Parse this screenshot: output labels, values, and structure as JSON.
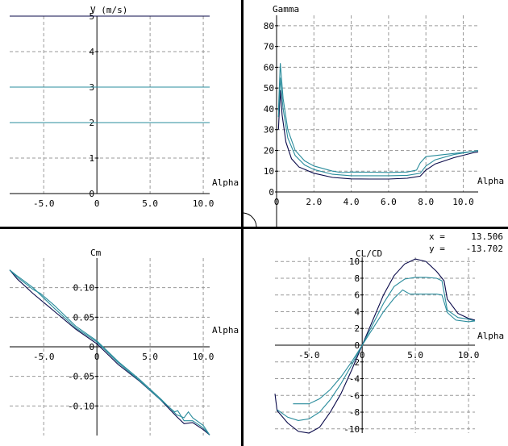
{
  "colors": {
    "background": "#ffffff",
    "grid": "#9a9a9a",
    "axis": "#000000",
    "series_dark": "#0a0a4a",
    "series_teal": "#2a8c9c",
    "separator": "#000000"
  },
  "readout": {
    "x_label": "x  =",
    "x_value": "13.506",
    "y_label": "y  =",
    "y_value": "-13.702"
  },
  "chart_data": [
    {
      "id": "velocity",
      "type": "line",
      "xlabel": "Alpha",
      "ylabel": "V (m/s)",
      "xlim": [
        -8.2,
        10.6
      ],
      "ylim": [
        0,
        5
      ],
      "xticks": [
        -5,
        0,
        5,
        10
      ],
      "xtick_labels": [
        "-5.0",
        "0",
        "5.0",
        "10.0"
      ],
      "yticks": [
        0,
        1,
        2,
        3,
        4,
        5
      ],
      "ytick_labels": [
        "0",
        "1",
        "2",
        "3",
        "4",
        "5"
      ],
      "grid": true,
      "series": [
        {
          "color": "#0a0a4a",
          "points": [
            [
              -8.2,
              5
            ],
            [
              10.6,
              5
            ]
          ]
        },
        {
          "color": "#2a8c9c",
          "points": [
            [
              -8.2,
              3
            ],
            [
              10.6,
              3
            ]
          ]
        },
        {
          "color": "#2a8c9c",
          "points": [
            [
              -8.2,
              2
            ],
            [
              10.6,
              2
            ]
          ]
        }
      ]
    },
    {
      "id": "gamma",
      "type": "line",
      "xlabel": "Alpha",
      "ylabel": "Gamma",
      "xlim": [
        0,
        10.8
      ],
      "ylim": [
        0,
        85
      ],
      "xticks": [
        0,
        2,
        4,
        6,
        8,
        10
      ],
      "xtick_labels": [
        "0",
        "2.0",
        "4.0",
        "6.0",
        "8.0",
        "10.0"
      ],
      "yticks": [
        0,
        10,
        20,
        30,
        40,
        50,
        60,
        70,
        80
      ],
      "ytick_labels": [
        "0",
        "10",
        "20",
        "30",
        "40",
        "50",
        "60",
        "70",
        "80"
      ],
      "grid": true,
      "series": [
        {
          "color": "#0a0a4a",
          "points": [
            [
              0.1,
              30
            ],
            [
              0.2,
              49
            ],
            [
              0.3,
              37
            ],
            [
              0.5,
              24
            ],
            [
              0.8,
              16
            ],
            [
              1.2,
              12
            ],
            [
              2,
              9
            ],
            [
              3,
              7
            ],
            [
              4,
              6.3
            ],
            [
              5,
              6.2
            ],
            [
              6,
              6.2
            ],
            [
              7,
              6.6
            ],
            [
              7.7,
              7.6
            ],
            [
              8,
              10.5
            ],
            [
              8.5,
              13.5
            ],
            [
              9.5,
              16.5
            ],
            [
              10.5,
              18.8
            ],
            [
              10.8,
              19.3
            ]
          ]
        },
        {
          "color": "#2a8c9c",
          "points": [
            [
              0.1,
              39
            ],
            [
              0.2,
              62
            ],
            [
              0.35,
              45
            ],
            [
              0.6,
              30
            ],
            [
              1,
              20
            ],
            [
              1.5,
              15
            ],
            [
              2,
              12.5
            ],
            [
              3,
              10
            ],
            [
              3.5,
              9.3
            ],
            [
              4,
              9.6
            ],
            [
              5,
              9.5
            ],
            [
              6,
              9.4
            ],
            [
              7,
              9.6
            ],
            [
              7.5,
              10.5
            ],
            [
              7.7,
              14
            ],
            [
              8,
              17
            ],
            [
              9,
              18
            ],
            [
              10,
              19
            ],
            [
              10.8,
              19.8
            ]
          ]
        },
        {
          "color": "#2a8c9c",
          "points": [
            [
              0.1,
              36
            ],
            [
              0.2,
              55
            ],
            [
              0.35,
              40
            ],
            [
              0.6,
              26
            ],
            [
              1,
              17.5
            ],
            [
              1.5,
              13
            ],
            [
              2,
              10.8
            ],
            [
              3,
              8.5
            ],
            [
              4,
              7.8
            ],
            [
              5,
              7.8
            ],
            [
              6,
              7.8
            ],
            [
              7,
              8
            ],
            [
              7.7,
              9
            ],
            [
              8,
              12.5
            ],
            [
              8.5,
              15.5
            ],
            [
              9.5,
              18
            ],
            [
              10.5,
              19.5
            ],
            [
              10.8,
              20
            ]
          ]
        }
      ]
    },
    {
      "id": "cm",
      "type": "line",
      "xlabel": "Alpha",
      "ylabel": "Cm",
      "xlim": [
        -8.2,
        10.6
      ],
      "ylim": [
        -0.15,
        0.15
      ],
      "xticks": [
        -5,
        0,
        5,
        10
      ],
      "xtick_labels": [
        "-5.0",
        "0",
        "5.0",
        "10.0"
      ],
      "yticks": [
        -0.1,
        -0.05,
        0,
        0.05,
        0.1
      ],
      "ytick_labels": [
        "-0.10",
        "-0.05",
        "0",
        "0.05",
        "0.10"
      ],
      "grid": true,
      "series": [
        {
          "color": "#0a0a4a",
          "points": [
            [
              -8.2,
              0.13
            ],
            [
              -7.5,
              0.115
            ],
            [
              -6,
              0.09
            ],
            [
              -4,
              0.06
            ],
            [
              -2,
              0.03
            ],
            [
              0,
              0.005
            ],
            [
              2,
              -0.03
            ],
            [
              4,
              -0.058
            ],
            [
              6,
              -0.09
            ],
            [
              7.5,
              -0.118
            ],
            [
              8.2,
              -0.13
            ],
            [
              9,
              -0.128
            ],
            [
              10,
              -0.14
            ],
            [
              10.6,
              -0.149
            ]
          ]
        },
        {
          "color": "#2a8c9c",
          "points": [
            [
              -8.2,
              0.13
            ],
            [
              -7.5,
              0.118
            ],
            [
              -6,
              0.097
            ],
            [
              -5.3,
              0.09
            ],
            [
              -4,
              0.07
            ],
            [
              -2,
              0.035
            ],
            [
              0,
              0.01
            ],
            [
              2,
              -0.025
            ],
            [
              4,
              -0.055
            ],
            [
              6,
              -0.088
            ],
            [
              7.5,
              -0.115
            ],
            [
              8.2,
              -0.12
            ],
            [
              8.6,
              -0.11
            ],
            [
              9,
              -0.12
            ],
            [
              10,
              -0.133
            ],
            [
              10.6,
              -0.149
            ]
          ]
        },
        {
          "color": "#2a8c9c",
          "points": [
            [
              -8.2,
              0.13
            ],
            [
              -7.5,
              0.12
            ],
            [
              -6,
              0.1
            ],
            [
              -4,
              0.065
            ],
            [
              -2,
              0.032
            ],
            [
              0,
              0.008
            ],
            [
              2,
              -0.027
            ],
            [
              4,
              -0.057
            ],
            [
              6,
              -0.09
            ],
            [
              7.3,
              -0.11
            ],
            [
              7.6,
              -0.108
            ],
            [
              8.2,
              -0.125
            ],
            [
              9,
              -0.125
            ],
            [
              10,
              -0.137
            ],
            [
              10.6,
              -0.149
            ]
          ]
        }
      ]
    },
    {
      "id": "cl_cd",
      "type": "line",
      "xlabel": "Alpha",
      "ylabel": "CL/CD",
      "xlim": [
        -8.2,
        10.6
      ],
      "ylim": [
        -10.5,
        10.5
      ],
      "xticks": [
        -5,
        0,
        5,
        10
      ],
      "xtick_labels": [
        "-5.0",
        "0",
        "5.0",
        "10.0"
      ],
      "yticks": [
        -10,
        -8,
        -6,
        -4,
        -2,
        0,
        2,
        4,
        6,
        8,
        10
      ],
      "ytick_labels": [
        "-10",
        "-8",
        "-6",
        "-4",
        "-2",
        "0",
        "2",
        "4",
        "6",
        "8",
        "10"
      ],
      "grid": true,
      "series": [
        {
          "color": "#0a0a4a",
          "points": [
            [
              -8.2,
              -5.8
            ],
            [
              -8,
              -7.8
            ],
            [
              -7,
              -9.3
            ],
            [
              -6,
              -10.3
            ],
            [
              -5,
              -10.5
            ],
            [
              -4,
              -9.8
            ],
            [
              -3,
              -8
            ],
            [
              -2,
              -5.8
            ],
            [
              -1,
              -3
            ],
            [
              0,
              0
            ],
            [
              1,
              3
            ],
            [
              2,
              6
            ],
            [
              3,
              8.3
            ],
            [
              4,
              9.7
            ],
            [
              5,
              10.3
            ],
            [
              6,
              10
            ],
            [
              7,
              8.8
            ],
            [
              7.7,
              7.7
            ],
            [
              8,
              5.5
            ],
            [
              9,
              3.8
            ],
            [
              10,
              3.2
            ],
            [
              10.6,
              3
            ]
          ]
        },
        {
          "color": "#2a8c9c",
          "points": [
            [
              -8,
              -7.7
            ],
            [
              -7,
              -8.6
            ],
            [
              -6,
              -9
            ],
            [
              -5,
              -8.8
            ],
            [
              -4,
              -8
            ],
            [
              -3,
              -6.5
            ],
            [
              -2,
              -4.6
            ],
            [
              -1,
              -2.4
            ],
            [
              0,
              0
            ],
            [
              1,
              2.5
            ],
            [
              2,
              5
            ],
            [
              3,
              7
            ],
            [
              4,
              7.9
            ],
            [
              5,
              8.1
            ],
            [
              6,
              8.1
            ],
            [
              7,
              8
            ],
            [
              7.5,
              7.7
            ],
            [
              8,
              4.2
            ],
            [
              9,
              3.3
            ],
            [
              10,
              3.1
            ],
            [
              10.6,
              2.9
            ]
          ]
        },
        {
          "color": "#2a8c9c",
          "points": [
            [
              -6.5,
              -7
            ],
            [
              -5.5,
              -7
            ],
            [
              -5,
              -7
            ],
            [
              -4,
              -6.4
            ],
            [
              -3,
              -5.3
            ],
            [
              -2,
              -3.8
            ],
            [
              -1,
              -2
            ],
            [
              0,
              0
            ],
            [
              1,
              2
            ],
            [
              2,
              4
            ],
            [
              3,
              5.6
            ],
            [
              3.8,
              6.6
            ],
            [
              4.5,
              6.1
            ],
            [
              5,
              6.1
            ],
            [
              6,
              6.1
            ],
            [
              7,
              6.1
            ],
            [
              7.5,
              6
            ],
            [
              8,
              3.9
            ],
            [
              8.8,
              3
            ],
            [
              10,
              2.8
            ],
            [
              10.6,
              2.9
            ]
          ]
        }
      ]
    }
  ]
}
